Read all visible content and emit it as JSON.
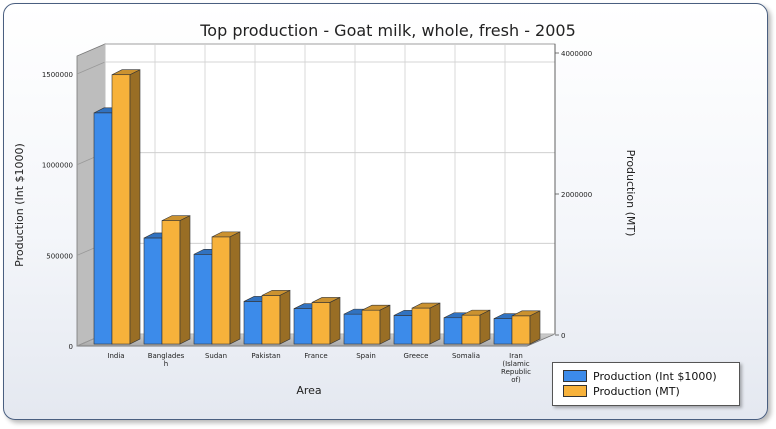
{
  "chart_data": {
    "type": "bar",
    "title": "Top production - Goat milk, whole, fresh - 2005",
    "xlabel": "Area",
    "ylabel": "Production (Int $1000)",
    "y2label": "Production (MT)",
    "categories": [
      "India",
      "Banglades h",
      "Sudan",
      "Pakistan",
      "France",
      "Spain",
      "Greece",
      "Somalia",
      "Iran (Islamic Republic of)"
    ],
    "category_lines": [
      [
        "India"
      ],
      [
        "Banglades",
        "h"
      ],
      [
        "Sudan"
      ],
      [
        "Pakistan"
      ],
      [
        "France"
      ],
      [
        "Spain"
      ],
      [
        "Greece"
      ],
      [
        "Somalia"
      ],
      [
        "Iran",
        "(Islamic",
        "Republic",
        "of)"
      ]
    ],
    "series": [
      {
        "name": "Production (Int $1000)",
        "axis": "left",
        "color": "#3c8bea",
        "values": [
          1275000,
          585000,
          495000,
          235000,
          195000,
          165000,
          158000,
          145000,
          140000
        ]
      },
      {
        "name": "Production (MT)",
        "axis": "right",
        "color": "#f7b23b",
        "values": [
          3820000,
          1750000,
          1520000,
          690000,
          590000,
          480000,
          510000,
          410000,
          400000
        ]
      }
    ],
    "ylim": [
      0,
      1500000
    ],
    "y2lim": [
      0,
      4000000
    ],
    "yticks": [
      0,
      500000,
      1000000,
      1500000
    ],
    "y2ticks": [
      0,
      2000000,
      4000000
    ],
    "grid": true,
    "legend_position": "bottom-right"
  }
}
